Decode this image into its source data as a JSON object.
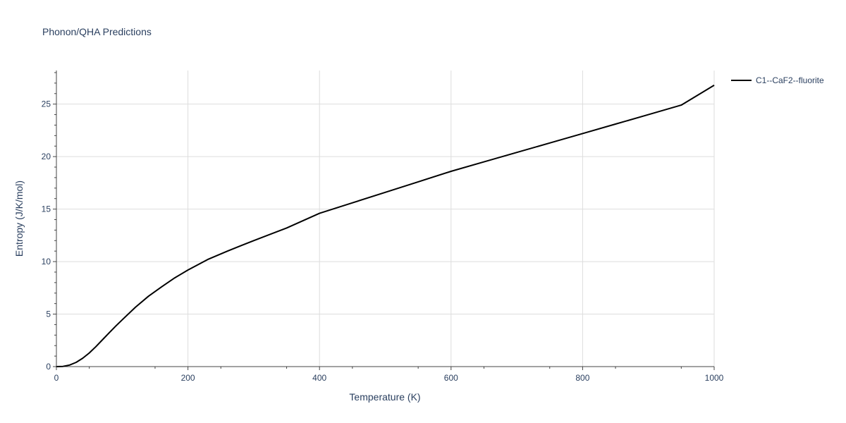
{
  "chart_data": {
    "type": "line",
    "title": "Phonon/QHA Predictions",
    "xlabel": "Temperature (K)",
    "ylabel": "Entropy (J/K/mol)",
    "xlim": [
      0,
      1000
    ],
    "ylim": [
      0,
      28.2
    ],
    "xticks": [
      0,
      200,
      400,
      600,
      800,
      1000
    ],
    "yticks": [
      0,
      5,
      10,
      15,
      20,
      25
    ],
    "grid": true,
    "legend_position": "top-right",
    "series": [
      {
        "name": "C1--CaF2--fluorite",
        "color": "#000000",
        "x": [
          0,
          10,
          20,
          30,
          40,
          50,
          60,
          70,
          80,
          90,
          100,
          120,
          140,
          160,
          180,
          200,
          230,
          260,
          280,
          300,
          350,
          400,
          450,
          500,
          550,
          600,
          650,
          700,
          750,
          800,
          850,
          900,
          950,
          1000
        ],
        "y": [
          0,
          0.02,
          0.15,
          0.4,
          0.8,
          1.3,
          1.9,
          2.55,
          3.2,
          3.85,
          4.45,
          5.65,
          6.7,
          7.6,
          8.45,
          9.2,
          10.2,
          11.0,
          11.5,
          12.0,
          13.2,
          14.6,
          15.6,
          16.6,
          17.6,
          18.6,
          19.5,
          20.4,
          21.3,
          22.2,
          23.1,
          24.0,
          24.9,
          26.8
        ]
      }
    ]
  }
}
